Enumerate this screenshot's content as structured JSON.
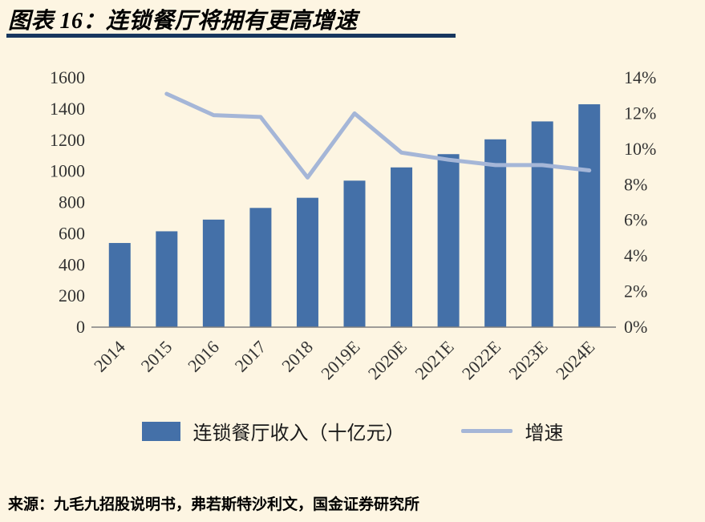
{
  "header": {
    "title": "图表 16：连锁餐厅将拥有更高增速"
  },
  "legend": {
    "bar_label": "连锁餐厅收入（十亿元）",
    "line_label": "增速"
  },
  "footer": {
    "source": "来源：九毛九招股说明书，弗若斯特沙利文，国金证券研究所"
  },
  "colors": {
    "background": "#fdf5e2",
    "bar": "#4470a8",
    "line": "#a5b6d7",
    "title_underline": "#17375e",
    "axis_text": "#333333",
    "axis_line": "#7f7f7f"
  },
  "chart_data": {
    "type": "bar+line",
    "title": "连锁餐厅将拥有更高增速",
    "categories": [
      "2014",
      "2015",
      "2016",
      "2017",
      "2018",
      "2019E",
      "2020E",
      "2021E",
      "2022E",
      "2023E",
      "2024E"
    ],
    "series": [
      {
        "name": "连锁餐厅收入（十亿元）",
        "type": "bar",
        "axis": "left",
        "values": [
          540,
          615,
          690,
          765,
          830,
          940,
          1025,
          1110,
          1205,
          1320,
          1430
        ]
      },
      {
        "name": "增速",
        "type": "line",
        "axis": "right",
        "values": [
          null,
          13.1,
          11.9,
          11.8,
          8.4,
          12.0,
          9.8,
          9.4,
          9.1,
          9.1,
          8.8
        ]
      }
    ],
    "left_axis": {
      "min": 0,
      "max": 1600,
      "step": 200,
      "tick_labels": [
        "0",
        "200",
        "400",
        "600",
        "800",
        "1000",
        "1200",
        "1400",
        "1600"
      ]
    },
    "right_axis": {
      "min": 0,
      "max": 14,
      "step": 2,
      "tick_labels": [
        "0%",
        "2%",
        "4%",
        "6%",
        "8%",
        "10%",
        "12%",
        "14%"
      ]
    },
    "grid": false,
    "legend_position": "bottom"
  }
}
